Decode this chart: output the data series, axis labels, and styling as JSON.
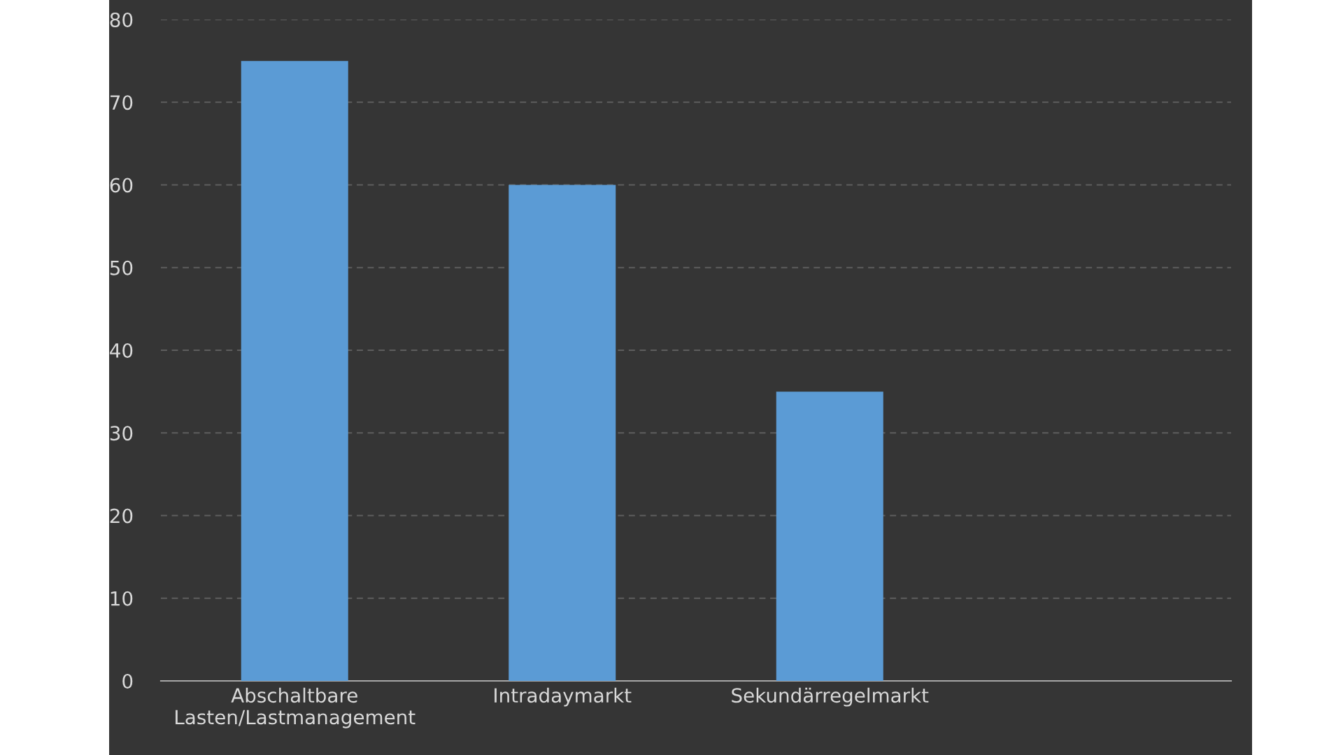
{
  "chart_data": {
    "type": "bar",
    "categories": [
      "Abschaltbare\nLasten/Lastmanagement",
      "Intradaymarkt",
      "Sekundärregelmarkt",
      null
    ],
    "values": [
      75,
      60,
      35,
      null
    ],
    "color": "#5b9bd5",
    "ylim": [
      0,
      80
    ],
    "yticks": [
      0,
      10,
      20,
      30,
      40,
      50,
      60,
      70,
      80
    ],
    "grid": "y"
  }
}
